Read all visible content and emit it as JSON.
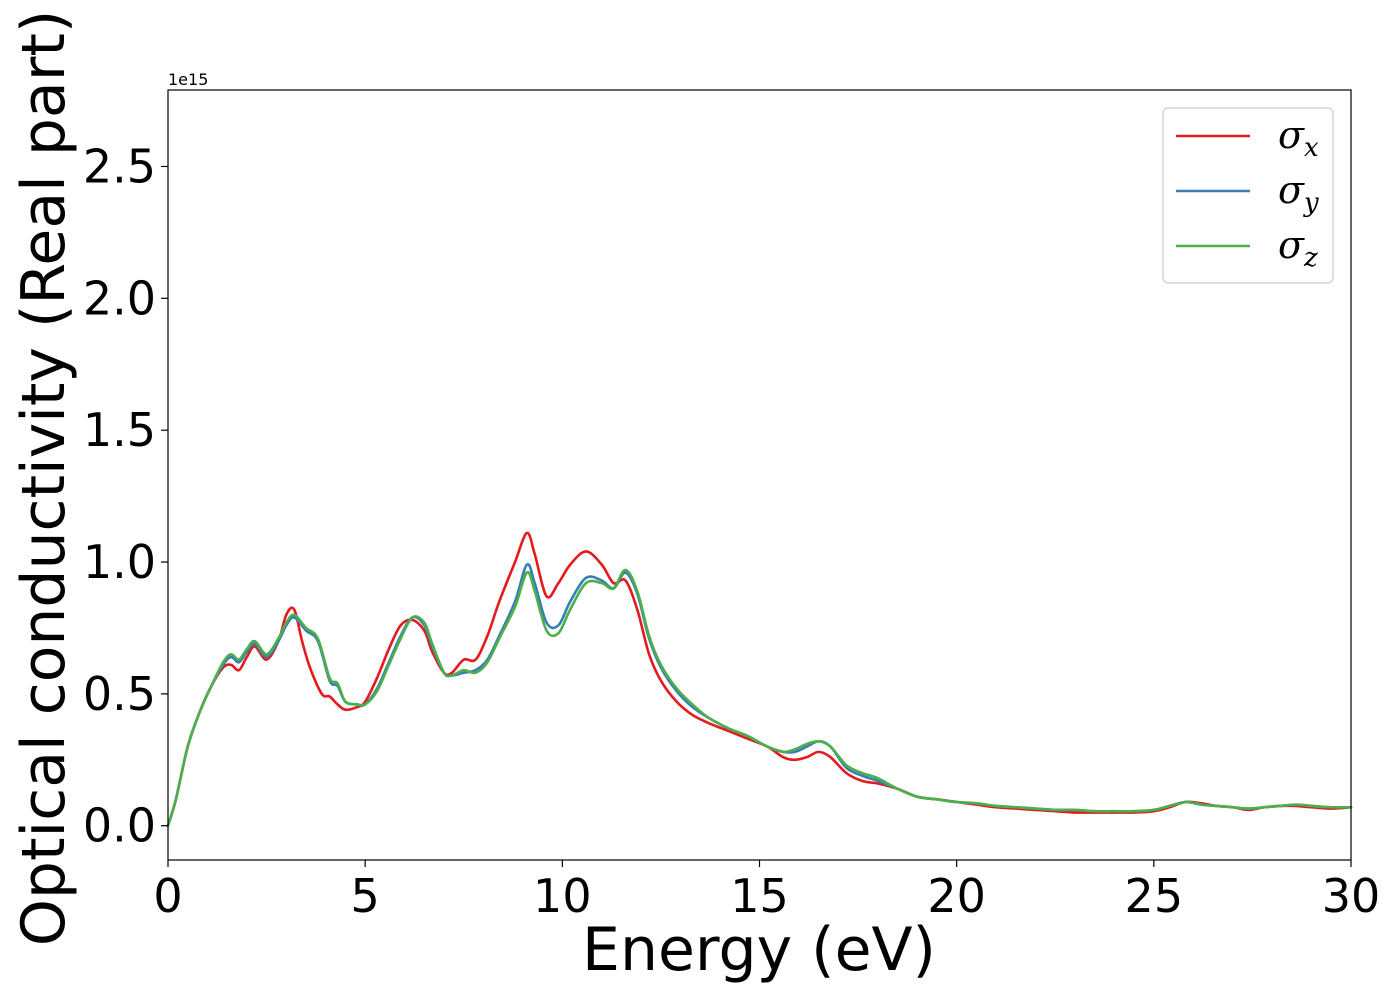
{
  "chart_data": {
    "type": "line",
    "xlabel": "Energy (eV)",
    "ylabel": "Optical conductivity (Real part)",
    "offset_text": "1e15",
    "xlim": [
      0,
      30
    ],
    "ylim": [
      -0.13,
      2.79
    ],
    "y_scale": 1000000000000000.0,
    "x_ticks": [
      0,
      5,
      10,
      15,
      20,
      25,
      30
    ],
    "x_tick_labels": [
      "0",
      "5",
      "10",
      "15",
      "20",
      "25",
      "30"
    ],
    "y_ticks": [
      0.0,
      0.5,
      1.0,
      1.5,
      2.0,
      2.5
    ],
    "y_tick_labels": [
      "0.0",
      "0.5",
      "1.0",
      "1.5",
      "2.0",
      "2.5"
    ],
    "grid": false,
    "legend_position": "top-right",
    "series": [
      {
        "name": "σx",
        "symbol": "σ",
        "subscript": "x",
        "color": "#e41a1c",
        "x": [
          0,
          0.2,
          0.5,
          0.8,
          1.1,
          1.4,
          1.6,
          1.8,
          2.0,
          2.2,
          2.5,
          2.8,
          3.0,
          3.2,
          3.4,
          3.6,
          3.9,
          4.1,
          4.3,
          4.5,
          4.8,
          5.0,
          5.3,
          5.6,
          5.9,
          6.2,
          6.5,
          6.7,
          7.0,
          7.2,
          7.5,
          7.8,
          8.1,
          8.4,
          8.8,
          9.1,
          9.3,
          9.6,
          9.9,
          10.2,
          10.6,
          11.0,
          11.3,
          11.6,
          11.9,
          12.2,
          12.5,
          12.9,
          13.3,
          13.7,
          14.2,
          14.7,
          15.2,
          15.6,
          15.9,
          16.2,
          16.5,
          16.8,
          17.2,
          17.6,
          18.0,
          18.5,
          19.0,
          19.5,
          20.0,
          20.5,
          21.0,
          21.5,
          22.0,
          22.5,
          23.0,
          23.5,
          24.0,
          24.5,
          25.0,
          25.4,
          25.8,
          26.2,
          26.6,
          27.0,
          27.4,
          27.8,
          28.2,
          28.6,
          29.0,
          29.5,
          30.0
        ],
        "y": [
          0.0,
          0.1,
          0.3,
          0.43,
          0.53,
          0.6,
          0.61,
          0.59,
          0.64,
          0.68,
          0.63,
          0.7,
          0.8,
          0.82,
          0.7,
          0.6,
          0.5,
          0.49,
          0.46,
          0.44,
          0.45,
          0.47,
          0.56,
          0.67,
          0.76,
          0.78,
          0.74,
          0.66,
          0.58,
          0.58,
          0.63,
          0.63,
          0.72,
          0.85,
          1.0,
          1.11,
          1.03,
          0.87,
          0.92,
          0.99,
          1.04,
          0.99,
          0.92,
          0.93,
          0.82,
          0.65,
          0.55,
          0.47,
          0.42,
          0.39,
          0.36,
          0.33,
          0.3,
          0.26,
          0.25,
          0.26,
          0.28,
          0.26,
          0.2,
          0.17,
          0.16,
          0.14,
          0.11,
          0.1,
          0.09,
          0.08,
          0.07,
          0.065,
          0.06,
          0.055,
          0.05,
          0.05,
          0.05,
          0.05,
          0.055,
          0.07,
          0.09,
          0.085,
          0.075,
          0.07,
          0.06,
          0.07,
          0.075,
          0.075,
          0.07,
          0.065,
          0.07
        ]
      },
      {
        "name": "σy",
        "symbol": "σ",
        "subscript": "y",
        "color": "#377eb8",
        "x": [
          0,
          0.2,
          0.5,
          0.8,
          1.1,
          1.4,
          1.6,
          1.8,
          2.0,
          2.2,
          2.5,
          2.8,
          3.0,
          3.2,
          3.5,
          3.8,
          4.1,
          4.3,
          4.5,
          4.8,
          5.0,
          5.3,
          5.6,
          5.9,
          6.2,
          6.5,
          6.7,
          7.0,
          7.2,
          7.5,
          7.8,
          8.1,
          8.4,
          8.8,
          9.1,
          9.3,
          9.6,
          9.9,
          10.2,
          10.6,
          11.0,
          11.3,
          11.6,
          11.9,
          12.2,
          12.5,
          12.9,
          13.3,
          13.7,
          14.2,
          14.7,
          15.2,
          15.6,
          15.9,
          16.2,
          16.5,
          16.8,
          17.2,
          17.6,
          18.0,
          18.5,
          19.0,
          19.5,
          20.0,
          20.5,
          21.0,
          21.5,
          22.0,
          22.5,
          23.0,
          23.5,
          24.0,
          24.5,
          25.0,
          25.4,
          25.8,
          26.2,
          26.6,
          27.0,
          27.4,
          27.8,
          28.2,
          28.6,
          29.0,
          29.5,
          30.0
        ],
        "y": [
          0.0,
          0.1,
          0.3,
          0.43,
          0.53,
          0.61,
          0.64,
          0.62,
          0.66,
          0.69,
          0.64,
          0.7,
          0.76,
          0.79,
          0.74,
          0.7,
          0.55,
          0.53,
          0.47,
          0.46,
          0.46,
          0.52,
          0.62,
          0.72,
          0.79,
          0.76,
          0.68,
          0.58,
          0.57,
          0.58,
          0.59,
          0.63,
          0.72,
          0.85,
          0.99,
          0.92,
          0.77,
          0.76,
          0.85,
          0.94,
          0.93,
          0.9,
          0.96,
          0.88,
          0.71,
          0.6,
          0.51,
          0.45,
          0.41,
          0.37,
          0.34,
          0.3,
          0.28,
          0.28,
          0.3,
          0.32,
          0.3,
          0.22,
          0.19,
          0.17,
          0.14,
          0.11,
          0.1,
          0.09,
          0.085,
          0.075,
          0.07,
          0.065,
          0.06,
          0.06,
          0.055,
          0.055,
          0.055,
          0.06,
          0.075,
          0.09,
          0.08,
          0.075,
          0.07,
          0.065,
          0.07,
          0.075,
          0.08,
          0.075,
          0.07,
          0.07
        ]
      },
      {
        "name": "σz",
        "symbol": "σ",
        "subscript": "z",
        "color": "#4daf4a",
        "x": [
          0,
          0.2,
          0.5,
          0.8,
          1.1,
          1.4,
          1.6,
          1.8,
          2.0,
          2.2,
          2.5,
          2.8,
          3.0,
          3.2,
          3.5,
          3.8,
          4.1,
          4.3,
          4.5,
          4.8,
          5.0,
          5.3,
          5.6,
          5.9,
          6.2,
          6.5,
          6.7,
          7.0,
          7.2,
          7.5,
          7.8,
          8.1,
          8.4,
          8.8,
          9.1,
          9.3,
          9.6,
          9.9,
          10.2,
          10.6,
          11.0,
          11.3,
          11.6,
          11.9,
          12.2,
          12.5,
          12.9,
          13.3,
          13.7,
          14.2,
          14.7,
          15.2,
          15.6,
          15.9,
          16.2,
          16.5,
          16.8,
          17.2,
          17.6,
          18.0,
          18.5,
          19.0,
          19.5,
          20.0,
          20.5,
          21.0,
          21.5,
          22.0,
          22.5,
          23.0,
          23.5,
          24.0,
          24.5,
          25.0,
          25.4,
          25.8,
          26.2,
          26.6,
          27.0,
          27.4,
          27.8,
          28.2,
          28.6,
          29.0,
          29.5,
          30.0
        ],
        "y": [
          0.0,
          0.1,
          0.3,
          0.43,
          0.53,
          0.62,
          0.65,
          0.63,
          0.67,
          0.7,
          0.65,
          0.71,
          0.77,
          0.8,
          0.75,
          0.71,
          0.56,
          0.54,
          0.47,
          0.46,
          0.46,
          0.51,
          0.61,
          0.71,
          0.79,
          0.77,
          0.69,
          0.58,
          0.57,
          0.59,
          0.58,
          0.62,
          0.71,
          0.83,
          0.96,
          0.89,
          0.74,
          0.73,
          0.82,
          0.92,
          0.92,
          0.9,
          0.97,
          0.89,
          0.72,
          0.61,
          0.52,
          0.46,
          0.41,
          0.37,
          0.34,
          0.3,
          0.28,
          0.29,
          0.31,
          0.32,
          0.3,
          0.23,
          0.2,
          0.18,
          0.14,
          0.11,
          0.1,
          0.09,
          0.085,
          0.075,
          0.07,
          0.065,
          0.06,
          0.06,
          0.055,
          0.055,
          0.055,
          0.06,
          0.075,
          0.09,
          0.08,
          0.075,
          0.07,
          0.065,
          0.07,
          0.075,
          0.08,
          0.075,
          0.07,
          0.07
        ]
      }
    ]
  }
}
